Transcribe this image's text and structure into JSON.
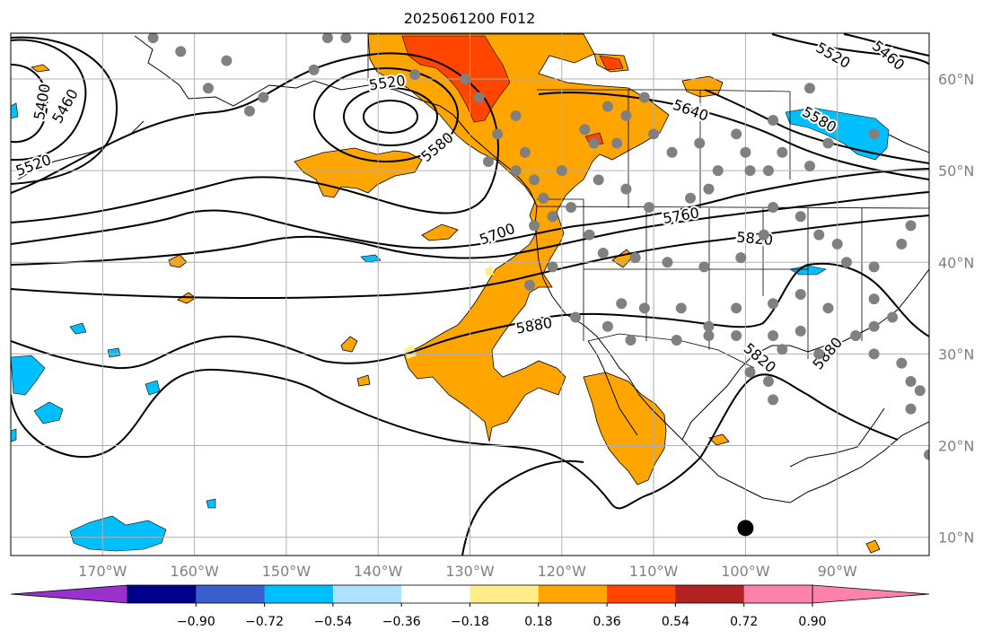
{
  "title": "2025061200 F012",
  "chart_data": {
    "type": "map",
    "title": "2025061200 F012",
    "projection": "plate-carree",
    "lon_range": [
      -180,
      -80
    ],
    "lat_range": [
      8,
      65
    ],
    "lon_ticks": [
      {
        "value": -170,
        "label": "170°W"
      },
      {
        "value": -160,
        "label": "160°W"
      },
      {
        "value": -150,
        "label": "150°W"
      },
      {
        "value": -140,
        "label": "140°W"
      },
      {
        "value": -130,
        "label": "130°W"
      },
      {
        "value": -120,
        "label": "120°W"
      },
      {
        "value": -110,
        "label": "110°W"
      },
      {
        "value": -100,
        "label": "100°W"
      },
      {
        "value": -90,
        "label": "90°W"
      }
    ],
    "lat_ticks": [
      {
        "value": 60,
        "label": "60°N"
      },
      {
        "value": 50,
        "label": "50°N"
      },
      {
        "value": 40,
        "label": "40°N"
      },
      {
        "value": 30,
        "label": "30°N"
      },
      {
        "value": 20,
        "label": "20°N"
      },
      {
        "value": 10,
        "label": "10°N"
      }
    ],
    "grid": true,
    "contour_labels": [
      {
        "text": "5520",
        "lon": -139,
        "lat": 59.5,
        "rot": -8
      },
      {
        "text": "5580",
        "lon": -133.5,
        "lat": 52.5,
        "rot": -40
      },
      {
        "text": "5400",
        "lon": -176.5,
        "lat": 57.5,
        "rot": -80
      },
      {
        "text": "5460",
        "lon": -174,
        "lat": 57,
        "rot": -60
      },
      {
        "text": "5520",
        "lon": -177.5,
        "lat": 50.5,
        "rot": -20
      },
      {
        "text": "5700",
        "lon": -127,
        "lat": 43,
        "rot": -20
      },
      {
        "text": "5760",
        "lon": -107,
        "lat": 45,
        "rot": -10
      },
      {
        "text": "5820",
        "lon": -99,
        "lat": 42.5,
        "rot": 5
      },
      {
        "text": "5880",
        "lon": -123,
        "lat": 33,
        "rot": -10
      },
      {
        "text": "5820",
        "lon": -98.5,
        "lat": 29.5,
        "rot": 40
      },
      {
        "text": "5880",
        "lon": -91,
        "lat": 30,
        "rot": -50
      },
      {
        "text": "5640",
        "lon": -106,
        "lat": 56.5,
        "rot": 20
      },
      {
        "text": "5580",
        "lon": -92,
        "lat": 55.5,
        "rot": 30
      },
      {
        "text": "5520",
        "lon": -90.5,
        "lat": 62.5,
        "rot": 30
      },
      {
        "text": "5460",
        "lon": -84.5,
        "lat": 62.5,
        "rot": 40
      }
    ],
    "colorbar": {
      "ticks": [
        "−0.90",
        "−0.72",
        "−0.54",
        "−0.36",
        "−0.18",
        "0.18",
        "0.36",
        "0.54",
        "0.72",
        "0.90"
      ],
      "colors": [
        "#9932cc",
        "#00008b",
        "#3a5fcd",
        "#00bfff",
        "#b0e2ff",
        "#ffffff",
        "#ffec8b",
        "#ffa500",
        "#ff4500",
        "#b22222",
        "#ff82ab",
        "#ff82ab"
      ]
    },
    "station_dots": [
      [
        -164.5,
        64.5
      ],
      [
        -161.5,
        63
      ],
      [
        -156.5,
        62
      ],
      [
        -158.5,
        59
      ],
      [
        -154,
        56.5
      ],
      [
        -152.5,
        58
      ],
      [
        -147,
        61
      ],
      [
        -145.5,
        64.5
      ],
      [
        -143.5,
        64.5
      ],
      [
        -136,
        60.5
      ],
      [
        -130.5,
        60
      ],
      [
        -129,
        58
      ],
      [
        -125,
        56
      ],
      [
        -127,
        54
      ],
      [
        -124,
        52
      ],
      [
        -123,
        49
      ],
      [
        -125,
        50
      ],
      [
        -128,
        51
      ],
      [
        -120,
        50
      ],
      [
        -117.5,
        54.5
      ],
      [
        -116.5,
        53
      ],
      [
        -115,
        57
      ],
      [
        -114,
        53
      ],
      [
        -113,
        56
      ],
      [
        -111,
        58
      ],
      [
        -110,
        54
      ],
      [
        -108,
        52
      ],
      [
        -105,
        53
      ],
      [
        -104,
        48
      ],
      [
        -101,
        54
      ],
      [
        -99.5,
        50
      ],
      [
        -97.5,
        50
      ],
      [
        -96,
        52
      ],
      [
        -93,
        50.5
      ],
      [
        -91,
        53
      ],
      [
        -86,
        54
      ],
      [
        -93,
        59
      ],
      [
        -97,
        55.5
      ],
      [
        -100,
        52
      ],
      [
        -103,
        50
      ],
      [
        -106,
        47
      ],
      [
        -110.5,
        46
      ],
      [
        -113,
        48
      ],
      [
        -116,
        49
      ],
      [
        -119,
        46
      ],
      [
        -121,
        45
      ],
      [
        -122,
        47
      ],
      [
        -123,
        44
      ],
      [
        -117,
        43
      ],
      [
        -115.5,
        41
      ],
      [
        -112,
        40.5
      ],
      [
        -108.5,
        40
      ],
      [
        -104.5,
        39.5
      ],
      [
        -100.5,
        40.5
      ],
      [
        -98,
        43
      ],
      [
        -97,
        46
      ],
      [
        -94,
        45
      ],
      [
        -92,
        43
      ],
      [
        -89,
        40
      ],
      [
        -90,
        42
      ],
      [
        -86,
        39.5
      ],
      [
        -83,
        42
      ],
      [
        -82,
        44
      ],
      [
        -79,
        37
      ],
      [
        -86,
        36
      ],
      [
        -91,
        35
      ],
      [
        -94,
        36.5
      ],
      [
        -97,
        35.5
      ],
      [
        -101,
        35
      ],
      [
        -104,
        33
      ],
      [
        -107,
        35
      ],
      [
        -111,
        35
      ],
      [
        -113.5,
        35.5
      ],
      [
        -118.5,
        34
      ],
      [
        -115,
        33
      ],
      [
        -112.5,
        31.5
      ],
      [
        -107.5,
        31.5
      ],
      [
        -104,
        32
      ],
      [
        -101,
        32
      ],
      [
        -97,
        32
      ],
      [
        -96,
        30.5
      ],
      [
        -94,
        32.5
      ],
      [
        -92,
        30
      ],
      [
        -88,
        32
      ],
      [
        -86,
        33
      ],
      [
        -84,
        34
      ],
      [
        -86,
        30
      ],
      [
        -83,
        29
      ],
      [
        -82,
        27
      ],
      [
        -81,
        26
      ],
      [
        -97.5,
        27
      ],
      [
        -99.5,
        28
      ],
      [
        -97,
        25
      ],
      [
        -82,
        24
      ],
      [
        -80,
        19
      ],
      [
        -123.5,
        37.5
      ],
      [
        -121,
        39.5
      ]
    ],
    "big_dot": {
      "lon": -100,
      "lat": 11
    }
  }
}
